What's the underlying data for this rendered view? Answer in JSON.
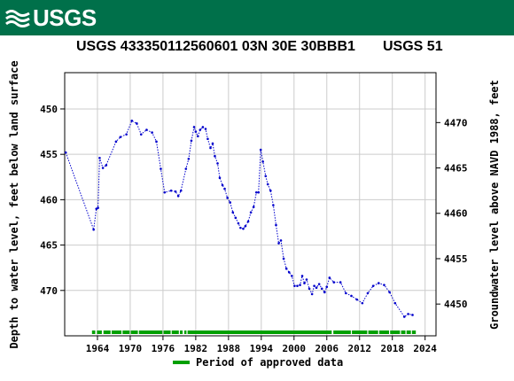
{
  "header": {
    "agency": "USGS",
    "title": "USGS 433350112560601 03N 30E 30BBB1",
    "agency_code": "USGS 51"
  },
  "legend": {
    "approved_label": "Period of approved data"
  },
  "colors": {
    "banner": "#00704a",
    "series": "#0000cc",
    "approved": "#00a000"
  },
  "chart_data": {
    "type": "scatter",
    "xlabel": "",
    "ylabel_left": "Depth to water level, feet below land surface",
    "ylabel_right": "Groundwater level above NAVD 1988, feet",
    "xlim": [
      1958,
      2026
    ],
    "ylim_left": [
      475,
      446
    ],
    "ylim_right": [
      4446.5,
      4475.5
    ],
    "x_ticks": [
      1964,
      1970,
      1976,
      1982,
      1988,
      1994,
      2000,
      2006,
      2012,
      2018,
      2024
    ],
    "y_ticks_left": [
      450,
      455,
      460,
      465,
      470
    ],
    "y_ticks_right": [
      4470,
      4465,
      4460,
      4455,
      4450
    ],
    "series": [
      {
        "line_style": "dotted",
        "points": [
          [
            1958.2,
            454.8
          ],
          [
            1963.3,
            463.3
          ],
          [
            1963.8,
            461.0
          ],
          [
            1964.1,
            460.9
          ],
          [
            1964.4,
            455.4
          ],
          [
            1965.0,
            456.5
          ],
          [
            1965.6,
            456.2
          ],
          [
            1967.4,
            453.6
          ],
          [
            1968.2,
            453.1
          ],
          [
            1969.3,
            452.8
          ],
          [
            1970.3,
            451.3
          ],
          [
            1971.2,
            451.6
          ],
          [
            1972.0,
            452.8
          ],
          [
            1973.0,
            452.3
          ],
          [
            1974.0,
            452.6
          ],
          [
            1974.8,
            453.6
          ],
          [
            1975.6,
            456.6
          ],
          [
            1976.3,
            459.2
          ],
          [
            1977.5,
            459.0
          ],
          [
            1978.3,
            459.1
          ],
          [
            1978.8,
            459.6
          ],
          [
            1979.3,
            459.0
          ],
          [
            1980.2,
            456.6
          ],
          [
            1980.7,
            455.5
          ],
          [
            1981.2,
            453.5
          ],
          [
            1981.7,
            452.0
          ],
          [
            1982.0,
            452.5
          ],
          [
            1982.4,
            453.0
          ],
          [
            1982.8,
            452.3
          ],
          [
            1983.3,
            452.0
          ],
          [
            1983.8,
            452.2
          ],
          [
            1984.2,
            453.3
          ],
          [
            1984.7,
            454.3
          ],
          [
            1985.1,
            453.8
          ],
          [
            1985.5,
            455.2
          ],
          [
            1986.0,
            456.0
          ],
          [
            1986.4,
            457.6
          ],
          [
            1986.9,
            458.4
          ],
          [
            1987.3,
            458.8
          ],
          [
            1987.8,
            459.8
          ],
          [
            1988.3,
            460.3
          ],
          [
            1988.8,
            461.4
          ],
          [
            1989.3,
            462.0
          ],
          [
            1989.8,
            462.6
          ],
          [
            1990.2,
            463.1
          ],
          [
            1990.7,
            463.2
          ],
          [
            1991.1,
            462.9
          ],
          [
            1991.6,
            462.4
          ],
          [
            1992.1,
            461.4
          ],
          [
            1992.6,
            460.8
          ],
          [
            1993.1,
            459.2
          ],
          [
            1993.5,
            459.2
          ],
          [
            1993.9,
            454.5
          ],
          [
            1994.3,
            455.8
          ],
          [
            1994.8,
            457.4
          ],
          [
            1995.2,
            458.3
          ],
          [
            1995.7,
            459.0
          ],
          [
            1996.2,
            460.6
          ],
          [
            1996.7,
            462.8
          ],
          [
            1997.2,
            464.8
          ],
          [
            1997.6,
            464.5
          ],
          [
            1998.1,
            466.5
          ],
          [
            1998.6,
            467.6
          ],
          [
            1999.1,
            468.0
          ],
          [
            1999.6,
            468.4
          ],
          [
            2000.1,
            469.5
          ],
          [
            2000.6,
            469.5
          ],
          [
            2001.1,
            469.4
          ],
          [
            2001.5,
            468.4
          ],
          [
            2001.9,
            469.2
          ],
          [
            2002.3,
            468.8
          ],
          [
            2002.8,
            469.8
          ],
          [
            2003.3,
            470.4
          ],
          [
            2003.7,
            469.5
          ],
          [
            2004.1,
            469.7
          ],
          [
            2004.6,
            469.3
          ],
          [
            2005.1,
            469.8
          ],
          [
            2005.6,
            470.2
          ],
          [
            2006.0,
            469.6
          ],
          [
            2006.5,
            468.6
          ],
          [
            2007.3,
            469.1
          ],
          [
            2008.5,
            469.1
          ],
          [
            2009.5,
            470.3
          ],
          [
            2010.5,
            470.6
          ],
          [
            2011.5,
            471.0
          ],
          [
            2012.5,
            471.4
          ],
          [
            2013.5,
            470.3
          ],
          [
            2014.5,
            469.5
          ],
          [
            2015.5,
            469.2
          ],
          [
            2016.5,
            469.4
          ],
          [
            2017.5,
            470.2
          ],
          [
            2018.5,
            471.4
          ],
          [
            2020.2,
            472.9
          ],
          [
            2020.9,
            472.6
          ],
          [
            2021.7,
            472.7
          ]
        ]
      }
    ],
    "approved_periods": [
      [
        1963.0,
        1963.6
      ],
      [
        1963.9,
        1964.8
      ],
      [
        1965.1,
        1966.4
      ],
      [
        1966.6,
        1968.4
      ],
      [
        1968.6,
        1969.9
      ],
      [
        1970.1,
        1971.4
      ],
      [
        1971.6,
        1975.9
      ],
      [
        1976.1,
        1977.4
      ],
      [
        1977.6,
        1978.9
      ],
      [
        1979.1,
        1979.6
      ],
      [
        1979.9,
        1980.3
      ],
      [
        1980.5,
        2006.9
      ],
      [
        2007.2,
        2010.4
      ],
      [
        2010.6,
        2013.4
      ],
      [
        2013.6,
        2015.4
      ],
      [
        2015.6,
        2017.4
      ],
      [
        2017.6,
        2019.4
      ],
      [
        2019.6,
        2020.4
      ],
      [
        2020.6,
        2021.4
      ],
      [
        2021.6,
        2022.3
      ]
    ]
  }
}
